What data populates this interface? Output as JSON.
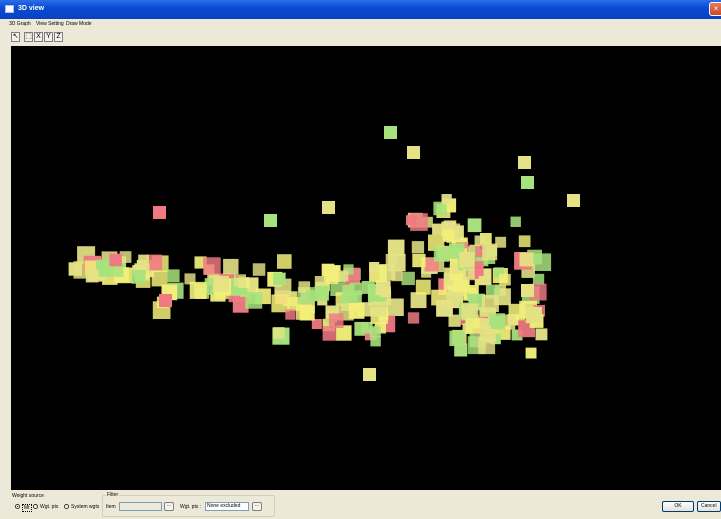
{
  "window": {
    "title": "3D view"
  },
  "menu": {
    "items": [
      "3D Graph",
      "View Setting",
      "Draw Mode"
    ]
  },
  "toolbar": {
    "buttons": [
      "↖",
      "⬚",
      "X",
      "Y",
      "Z"
    ]
  },
  "bottom": {
    "weight_source_label": "Weight source",
    "weight_options": [
      "Mt",
      "Wgt. pts",
      "System wgts"
    ],
    "filter_label": "Filter",
    "item_label": "Item",
    "item_value": "",
    "wgt_pts_label": "Wgt. pts :",
    "wgt_pts_value": "None excluded",
    "browse_label": "...",
    "ok_label": "OK",
    "cancel_label": "Cancel"
  },
  "scatter_colors": {
    "yellow": "#f2ef7a",
    "khaki": "#e4e285",
    "green": "#a8e27c",
    "red": "#ef7a82"
  }
}
